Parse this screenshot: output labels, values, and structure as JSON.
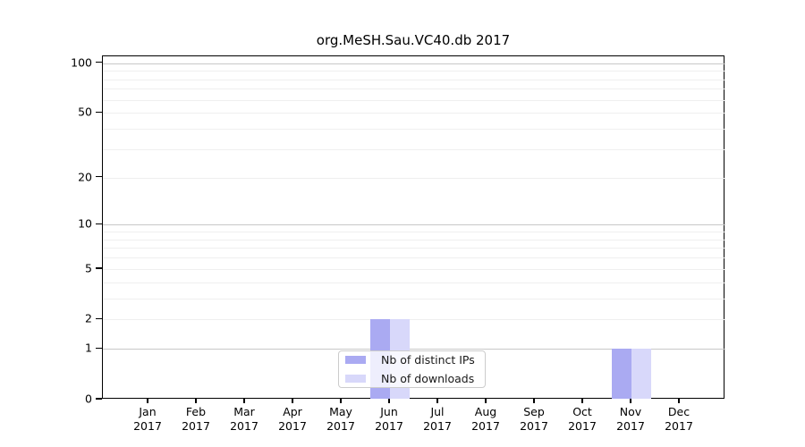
{
  "chart_data": {
    "type": "bar",
    "title": "org.MeSH.Sau.VC40.db 2017",
    "xlabel": "",
    "ylabel": "",
    "categories": [
      {
        "month": "Jan",
        "year": "2017"
      },
      {
        "month": "Feb",
        "year": "2017"
      },
      {
        "month": "Mar",
        "year": "2017"
      },
      {
        "month": "Apr",
        "year": "2017"
      },
      {
        "month": "May",
        "year": "2017"
      },
      {
        "month": "Jun",
        "year": "2017"
      },
      {
        "month": "Jul",
        "year": "2017"
      },
      {
        "month": "Aug",
        "year": "2017"
      },
      {
        "month": "Sep",
        "year": "2017"
      },
      {
        "month": "Oct",
        "year": "2017"
      },
      {
        "month": "Nov",
        "year": "2017"
      },
      {
        "month": "Dec",
        "year": "2017"
      }
    ],
    "series": [
      {
        "name": "Nb of distinct IPs",
        "color": "#aaaaf2",
        "values": [
          0,
          0,
          0,
          0,
          0,
          2,
          0,
          0,
          0,
          0,
          1,
          0
        ]
      },
      {
        "name": "Nb of downloads",
        "color": "#d8d8fa",
        "values": [
          0,
          0,
          0,
          0,
          0,
          2,
          0,
          0,
          0,
          0,
          1,
          0
        ]
      }
    ],
    "yscale": "log1p",
    "ylim": [
      0,
      110
    ],
    "yticks": [
      {
        "label": "0",
        "value": 0
      },
      {
        "label": "1",
        "value": 1
      },
      {
        "label": "2",
        "value": 2
      },
      {
        "label": "5",
        "value": 5
      },
      {
        "label": "10",
        "value": 10
      },
      {
        "label": "20",
        "value": 20
      },
      {
        "label": "50",
        "value": 50
      },
      {
        "label": "100",
        "value": 100
      }
    ],
    "grid_major_values": [
      1,
      10,
      100
    ],
    "grid_minor_values": [
      2,
      3,
      4,
      5,
      6,
      7,
      8,
      9,
      20,
      30,
      40,
      50,
      60,
      70,
      80,
      90
    ],
    "legend": {
      "position": "lower center",
      "entries": [
        "Nb of distinct IPs",
        "Nb of downloads"
      ]
    },
    "colors": {
      "grid_major": "#c8c8c8",
      "grid_minor": "#efefef",
      "axis": "#000000",
      "background": "#ffffff"
    }
  }
}
